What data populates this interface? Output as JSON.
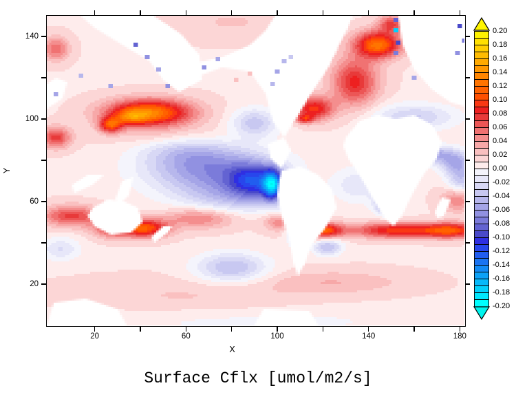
{
  "figure": {
    "background": "#FFFFFF",
    "frame_color": "#000000"
  },
  "title": {
    "text": "Surface Cflx [umol/m2/s]"
  },
  "axes": {
    "x": {
      "label": "X",
      "ticks": [
        20,
        40,
        60,
        80,
        100,
        120,
        140,
        160,
        180
      ],
      "labeled_ticks": [
        20,
        60,
        100,
        140,
        180
      ]
    },
    "y": {
      "label": "Y",
      "ticks": [
        20,
        40,
        60,
        80,
        100,
        120,
        140
      ],
      "labeled_ticks": [
        20,
        60,
        100,
        140
      ]
    }
  },
  "colorbar": {
    "labels": [
      "0.20",
      "0.18",
      "0.16",
      "0.14",
      "0.12",
      "0.10",
      "0.08",
      "0.06",
      "0.04",
      "0.02",
      "0.00",
      "-0.02",
      "-0.04",
      "-0.06",
      "-0.08",
      "-0.10",
      "-0.12",
      "-0.14",
      "-0.16",
      "-0.18",
      "-0.20"
    ],
    "box_colors": [
      "#FFF200",
      "#FFE000",
      "#FFCE00",
      "#FFBC00",
      "#FFAA00",
      "#FF9800",
      "#FF8600",
      "#FF7400",
      "#FF6200",
      "#FF5000",
      "#F93814",
      "#ED2020",
      "#E83A3A",
      "#EC5656",
      "#F07272",
      "#F48E8E",
      "#F7A8A8",
      "#FAC0C0",
      "#FCD6D6",
      "#FEECEC",
      "#F4F4FC",
      "#E7E7F9",
      "#D8D8F5",
      "#C8C8F1",
      "#B7B7EC",
      "#A5A5E7",
      "#9191E1",
      "#7B7BDA",
      "#6363D2",
      "#4949C9",
      "#2F2FE2",
      "#2846EC",
      "#215DEF",
      "#1A74F2",
      "#138BF5",
      "#0CA2F7",
      "#06B9FA",
      "#03D0FC",
      "#01E7FE",
      "#00FEFF"
    ],
    "over_color": "#FFF500",
    "under_color": "#00F4EE",
    "border_color": "#000000"
  },
  "chart_data": {
    "type": "heatmap",
    "title": "Surface Cflx [umol/m2/s]",
    "xlabel": "X",
    "ylabel": "Y",
    "x_range": [
      -1,
      182
    ],
    "y_range": [
      0,
      150
    ],
    "value_range": [
      -0.2,
      0.2
    ],
    "contour_interval": 0.01,
    "label_interval": 0.02,
    "grid": false,
    "legend_position": "right-colorbar",
    "base_value": 0.009,
    "features": [
      {
        "name": "kuroshio-extension-red",
        "x": 44,
        "y": 103,
        "sx": 13,
        "sy": 4.5,
        "v": 0.125
      },
      {
        "name": "kuroshio-hotspot",
        "x": 36,
        "y": 101,
        "sx": 5,
        "sy": 2.5,
        "v": 0.05
      },
      {
        "name": "japan-coast-red-streak",
        "x": 27,
        "y": 97,
        "sx": 3.5,
        "sy": 2.5,
        "v": 0.09
      },
      {
        "name": "west-pacific-red",
        "x": 3,
        "y": 91,
        "sx": 4.5,
        "sy": 3.5,
        "v": 0.065
      },
      {
        "name": "subtropical-pacific-pink-band",
        "x": 55,
        "y": 92,
        "sx": 18,
        "sy": 4,
        "v": 0.018
      },
      {
        "name": "top-left-red",
        "x": 3,
        "y": 134,
        "sx": 4,
        "sy": 4,
        "v": 0.05
      },
      {
        "name": "arctic-pink",
        "x": 80,
        "y": 147,
        "sx": 18,
        "sy": 6,
        "v": 0.012
      },
      {
        "name": "northeast-pacific-lavender",
        "x": 90,
        "y": 98,
        "sx": 7,
        "sy": 5,
        "v": -0.045
      },
      {
        "name": "equatorial-pacific-blue-north",
        "x": 60,
        "y": 85,
        "sx": 14,
        "sy": 6,
        "v": -0.03
      },
      {
        "name": "equatorial-pacific-blue-main",
        "x": 72,
        "y": 75,
        "sx": 20,
        "sy": 8,
        "v": -0.07
      },
      {
        "name": "equatorial-pacific-blue-east-core",
        "x": 90,
        "y": 70,
        "sx": 8,
        "sy": 6,
        "v": -0.08
      },
      {
        "name": "peru-upwelling-cyan-core",
        "x": 98,
        "y": 68,
        "sx": 3,
        "sy": 5,
        "v": -0.13
      },
      {
        "name": "equatorial-pacific-blue-south",
        "x": 80,
        "y": 62,
        "sx": 16,
        "sy": 6,
        "v": -0.035
      },
      {
        "name": "peru-coast-blue-streak",
        "x": 107,
        "y": 53,
        "sx": 2.5,
        "sy": 7,
        "v": -0.09
      },
      {
        "name": "gulf-stream-red",
        "x": 116,
        "y": 105,
        "sx": 6,
        "sy": 4,
        "v": 0.085
      },
      {
        "name": "gulf-stream-hotspot",
        "x": 112,
        "y": 100,
        "sx": 2.5,
        "sy": 1.5,
        "v": 0.06
      },
      {
        "name": "mid-north-atlantic-red",
        "x": 134,
        "y": 118,
        "sx": 7,
        "sy": 8,
        "v": 0.075
      },
      {
        "name": "north-atlantic-drift-red",
        "x": 144,
        "y": 136,
        "sx": 7,
        "sy": 4.5,
        "v": 0.115
      },
      {
        "name": "norwegian-sea-red",
        "x": 150,
        "y": 146,
        "sx": 4,
        "sy": 3,
        "v": 0.06
      },
      {
        "name": "tropical-atlantic-lavender",
        "x": 136,
        "y": 68,
        "sx": 8,
        "sy": 6,
        "v": -0.028
      },
      {
        "name": "benguela-blue",
        "x": 148,
        "y": 59,
        "sx": 3.5,
        "sy": 3.5,
        "v": -0.08
      },
      {
        "name": "falkland-blue",
        "x": 122,
        "y": 38,
        "sx": 4.5,
        "sy": 3,
        "v": -0.05
      },
      {
        "name": "southern-band-indian-west",
        "x": 10,
        "y": 53,
        "sx": 9,
        "sy": 3.5,
        "v": 0.065
      },
      {
        "name": "southern-band-south-australia",
        "x": 28,
        "y": 47,
        "sx": 6,
        "sy": 3,
        "v": 0.065
      },
      {
        "name": "tasman-red-hotspot",
        "x": 42,
        "y": 47,
        "sx": 7,
        "sy": 3,
        "v": 0.1
      },
      {
        "name": "southern-band-south-pacific",
        "x": 66,
        "y": 52,
        "sx": 11,
        "sy": 3.5,
        "v": 0.045
      },
      {
        "name": "southern-band-east-pacific",
        "x": 103,
        "y": 50,
        "sx": 6,
        "sy": 3,
        "v": 0.045
      },
      {
        "name": "southern-band-south-atlantic-hotspot",
        "x": 120,
        "y": 46,
        "sx": 6,
        "sy": 2.5,
        "v": 0.105
      },
      {
        "name": "southern-band-south-atlantic",
        "x": 151,
        "y": 46,
        "sx": 13,
        "sy": 2.5,
        "v": 0.085
      },
      {
        "name": "southern-band-indian-east",
        "x": 176,
        "y": 46,
        "sx": 9,
        "sy": 2.5,
        "v": 0.095
      },
      {
        "name": "south-pacific-blue",
        "x": 80,
        "y": 28,
        "sx": 11,
        "sy": 5,
        "v": -0.05
      },
      {
        "name": "south-indian-blue",
        "x": 5,
        "y": 37,
        "sx": 6,
        "sy": 4,
        "v": -0.03
      },
      {
        "name": "antarctic-pink-band",
        "x": 60,
        "y": 14,
        "sx": 38,
        "sy": 6,
        "v": 0.012
      },
      {
        "name": "south-atlantic-pink-streak",
        "x": 125,
        "y": 21,
        "sx": 22,
        "sy": 4,
        "v": 0.02
      },
      {
        "name": "antarctic-edge-white",
        "x": 90,
        "y": 2,
        "sx": 60,
        "sy": 5,
        "v": -0.012
      },
      {
        "name": "arabian-sea-blue-arc",
        "x": 166,
        "y": 83,
        "sx": 7,
        "sy": 3,
        "v": -0.065
      },
      {
        "name": "red-sea-blue-spot",
        "x": 154,
        "y": 89,
        "sx": 3,
        "sy": 2,
        "v": -0.08
      },
      {
        "name": "eurasian-seas-blue-band",
        "x": 160,
        "y": 101,
        "sx": 13,
        "sy": 4.5,
        "v": -0.04
      },
      {
        "name": "bay-of-bengal-blue",
        "x": 178,
        "y": 79,
        "sx": 5,
        "sy": 4,
        "v": -0.055
      },
      {
        "name": "east-indian-blue",
        "x": 181,
        "y": 70,
        "sx": 4.5,
        "sy": 5,
        "v": -0.045
      },
      {
        "name": "south-indian-red-patch",
        "x": 179,
        "y": 61,
        "sx": 5,
        "sy": 4,
        "v": 0.045
      }
    ],
    "land_polygons": [
      {
        "name": "siberia",
        "points": [
          [
            14,
            150
          ],
          [
            46,
            150
          ],
          [
            58,
            141
          ],
          [
            66,
            131
          ],
          [
            67,
            119
          ],
          [
            57,
            113
          ],
          [
            50,
            119
          ],
          [
            44,
            128
          ],
          [
            32,
            136
          ],
          [
            20,
            144
          ]
        ]
      },
      {
        "name": "alaska-north-america",
        "points": [
          [
            64,
            127
          ],
          [
            76,
            130
          ],
          [
            88,
            136
          ],
          [
            95,
            143
          ],
          [
            99,
            150
          ],
          [
            133,
            150
          ],
          [
            131,
            144
          ],
          [
            127,
            136
          ],
          [
            123,
            126
          ],
          [
            114,
            111
          ],
          [
            107,
            98
          ],
          [
            103,
            91
          ],
          [
            98,
            99
          ],
          [
            95,
            112
          ],
          [
            88,
            123
          ],
          [
            76,
            125
          ],
          [
            66,
            121
          ]
        ]
      },
      {
        "name": "eurasia",
        "points": [
          [
            153,
            150
          ],
          [
            183,
            150
          ],
          [
            183,
            106
          ],
          [
            176,
            108
          ],
          [
            168,
            114
          ],
          [
            160,
            124
          ],
          [
            155,
            136
          ]
        ]
      },
      {
        "name": "central-america",
        "points": [
          [
            96,
            88
          ],
          [
            103,
            91
          ],
          [
            106,
            85
          ],
          [
            102,
            76
          ],
          [
            97,
            81
          ]
        ]
      },
      {
        "name": "south-america",
        "points": [
          [
            102,
            75
          ],
          [
            110,
            77
          ],
          [
            118,
            73
          ],
          [
            124,
            66
          ],
          [
            126,
            57
          ],
          [
            121,
            47
          ],
          [
            115,
            39
          ],
          [
            112,
            30
          ],
          [
            109,
            24
          ],
          [
            107,
            31
          ],
          [
            105,
            43
          ],
          [
            102,
            53
          ],
          [
            100,
            63
          ],
          [
            101,
            71
          ]
        ]
      },
      {
        "name": "africa",
        "points": [
          [
            130,
            91
          ],
          [
            136,
            99
          ],
          [
            144,
            102
          ],
          [
            152,
            100
          ],
          [
            160,
            102
          ],
          [
            168,
            97
          ],
          [
            172,
            89
          ],
          [
            170,
            81
          ],
          [
            164,
            73
          ],
          [
            159,
            63
          ],
          [
            155,
            54
          ],
          [
            151,
            48
          ],
          [
            147,
            52
          ],
          [
            142,
            61
          ],
          [
            137,
            71
          ],
          [
            131,
            81
          ],
          [
            129,
            87
          ]
        ]
      },
      {
        "name": "australia",
        "points": [
          [
            19,
            57
          ],
          [
            26,
            61
          ],
          [
            33,
            60
          ],
          [
            39,
            57
          ],
          [
            41,
            50
          ],
          [
            36,
            45
          ],
          [
            27,
            44
          ],
          [
            20,
            48
          ],
          [
            17,
            53
          ]
        ]
      },
      {
        "name": "new-guinea",
        "points": [
          [
            29,
            61
          ],
          [
            32,
            70
          ],
          [
            37,
            72
          ],
          [
            35,
            63
          ],
          [
            31,
            59
          ]
        ]
      },
      {
        "name": "indonesia",
        "points": [
          [
            11,
            64
          ],
          [
            19,
            68
          ],
          [
            24,
            73
          ],
          [
            17,
            73
          ],
          [
            10,
            68
          ]
        ]
      },
      {
        "name": "new-zealand",
        "points": [
          [
            46,
            40
          ],
          [
            52,
            45
          ],
          [
            54,
            48
          ],
          [
            50,
            48
          ],
          [
            45,
            43
          ]
        ]
      },
      {
        "name": "madagascar",
        "points": [
          [
            169,
            55
          ],
          [
            172,
            62
          ],
          [
            176,
            61
          ],
          [
            173,
            53
          ],
          [
            170,
            52
          ]
        ]
      },
      {
        "name": "japan",
        "points": [
          [
            -1,
            105
          ],
          [
            6,
            110
          ],
          [
            8,
            118
          ],
          [
            3,
            120
          ],
          [
            -1,
            117
          ]
        ]
      },
      {
        "name": "antarctic-patch-west",
        "points": [
          [
            -1,
            0
          ],
          [
            34,
            0
          ],
          [
            30,
            8
          ],
          [
            16,
            13
          ],
          [
            2,
            11
          ]
        ]
      },
      {
        "name": "antarctic-patch-mid",
        "points": [
          [
            90,
            0
          ],
          [
            118,
            0
          ],
          [
            114,
            7
          ],
          [
            94,
            8
          ]
        ]
      }
    ],
    "spot_values": [
      {
        "x": 152,
        "y": 148,
        "v": -0.08
      },
      {
        "x": 152,
        "y": 143,
        "v": -0.17
      },
      {
        "x": 153,
        "y": 137,
        "v": -0.09
      },
      {
        "x": 152,
        "y": 132,
        "v": -0.07
      },
      {
        "x": 160,
        "y": 120,
        "v": -0.05
      },
      {
        "x": 180,
        "y": 145,
        "v": -0.09
      },
      {
        "x": 182,
        "y": 138,
        "v": -0.07
      },
      {
        "x": 179,
        "y": 132,
        "v": -0.06
      },
      {
        "x": 98,
        "y": 117,
        "v": -0.04
      },
      {
        "x": 100,
        "y": 123,
        "v": -0.05
      },
      {
        "x": 103,
        "y": 128,
        "v": -0.04
      },
      {
        "x": 106,
        "y": 130,
        "v": -0.03
      },
      {
        "x": 38,
        "y": 136,
        "v": -0.08
      },
      {
        "x": 43,
        "y": 130,
        "v": -0.06
      },
      {
        "x": 48,
        "y": 124,
        "v": -0.05
      },
      {
        "x": 27,
        "y": 116,
        "v": -0.05
      },
      {
        "x": 14,
        "y": 121,
        "v": -0.04
      },
      {
        "x": 68,
        "y": 125,
        "v": -0.06
      },
      {
        "x": 74,
        "y": 129,
        "v": -0.05
      },
      {
        "x": 3,
        "y": 112,
        "v": -0.05
      },
      {
        "x": 52,
        "y": 116,
        "v": -0.06
      },
      {
        "x": 82,
        "y": 119,
        "v": 0.03
      },
      {
        "x": 88,
        "y": 122,
        "v": 0.03
      }
    ]
  }
}
